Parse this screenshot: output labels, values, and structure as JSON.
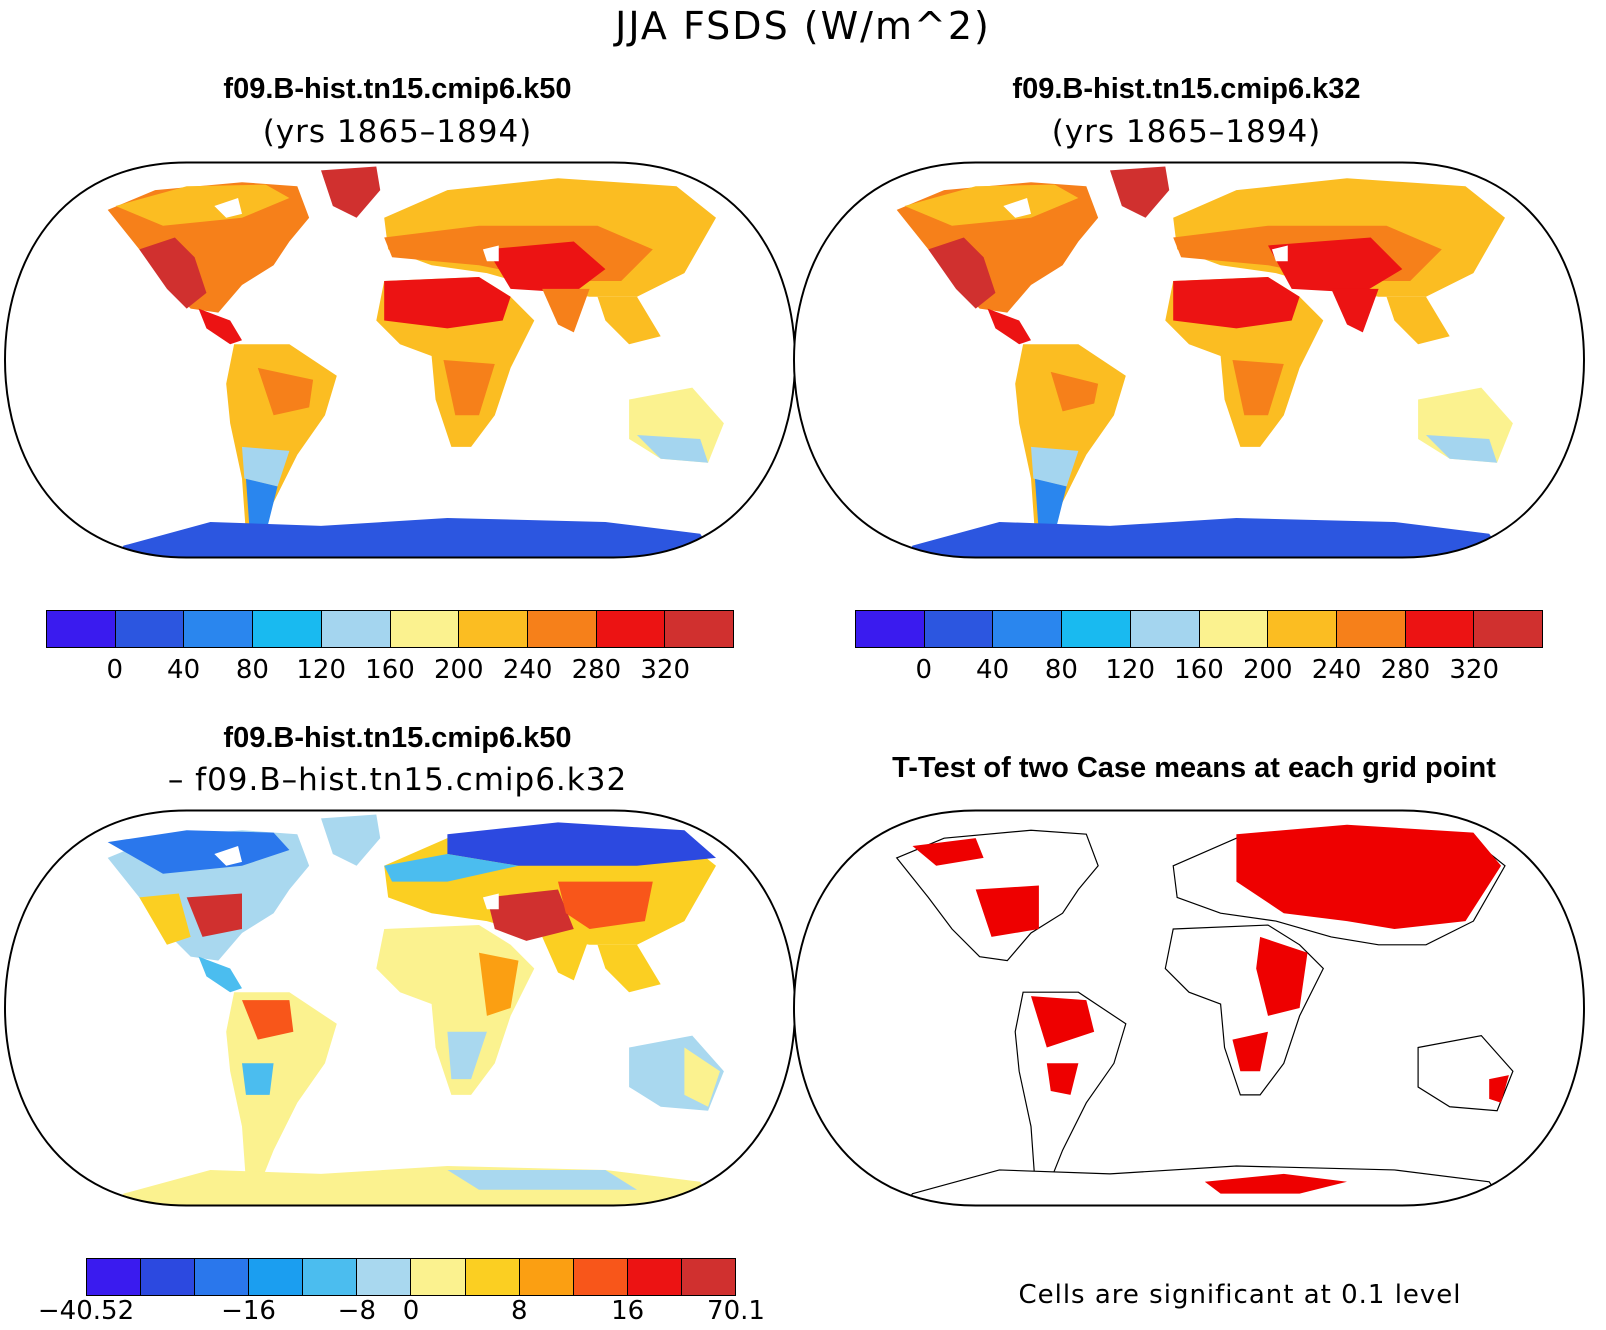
{
  "figure": {
    "title": "JJA FSDS (W/m^2)",
    "colors": {
      "land_outline": "#000000",
      "ocean": "#ffffff",
      "significant": "#ee0000"
    }
  },
  "panels": [
    {
      "id": "case1",
      "title": "f09.B-hist.tn15.cmip6.k50",
      "subtitle": "(yrs 1865–1894)",
      "colorbar": {
        "colors": [
          "#3a1bef",
          "#2c56e0",
          "#2a86ee",
          "#19baf0",
          "#a4d5ef",
          "#fbf28f",
          "#fbbd22",
          "#f6801a",
          "#ec1313",
          "#d0302f"
        ],
        "labels": [
          "0",
          "40",
          "80",
          "120",
          "160",
          "200",
          "240",
          "280",
          "320"
        ]
      }
    },
    {
      "id": "case2",
      "title": "f09.B-hist.tn15.cmip6.k32",
      "subtitle": "(yrs 1865–1894)",
      "colorbar": {
        "colors": [
          "#3a1bef",
          "#2c56e0",
          "#2a86ee",
          "#19baf0",
          "#a4d5ef",
          "#fbf28f",
          "#fbbd22",
          "#f6801a",
          "#ec1313",
          "#d0302f"
        ],
        "labels": [
          "0",
          "40",
          "80",
          "120",
          "160",
          "200",
          "240",
          "280",
          "320"
        ]
      }
    },
    {
      "id": "difference",
      "title": "f09.B-hist.tn15.cmip6.k50",
      "subtitle": "– f09.B–hist.tn15.cmip6.k32",
      "colorbar": {
        "colors": [
          "#3a1bef",
          "#2c49e0",
          "#2a77ec",
          "#1b9ef0",
          "#4bbdef",
          "#a9d8ef",
          "#fbf28f",
          "#fbcf22",
          "#fb9f12",
          "#f8561a",
          "#ec1313",
          "#d0302f"
        ],
        "labels": [
          "−40.52",
          "−16",
          "−8",
          "0",
          "8",
          "16",
          "70.1"
        ]
      }
    },
    {
      "id": "ttest",
      "title": "T-Test of two Case means at each grid point",
      "footnote": "Cells are significant at 0.1 level"
    }
  ]
}
